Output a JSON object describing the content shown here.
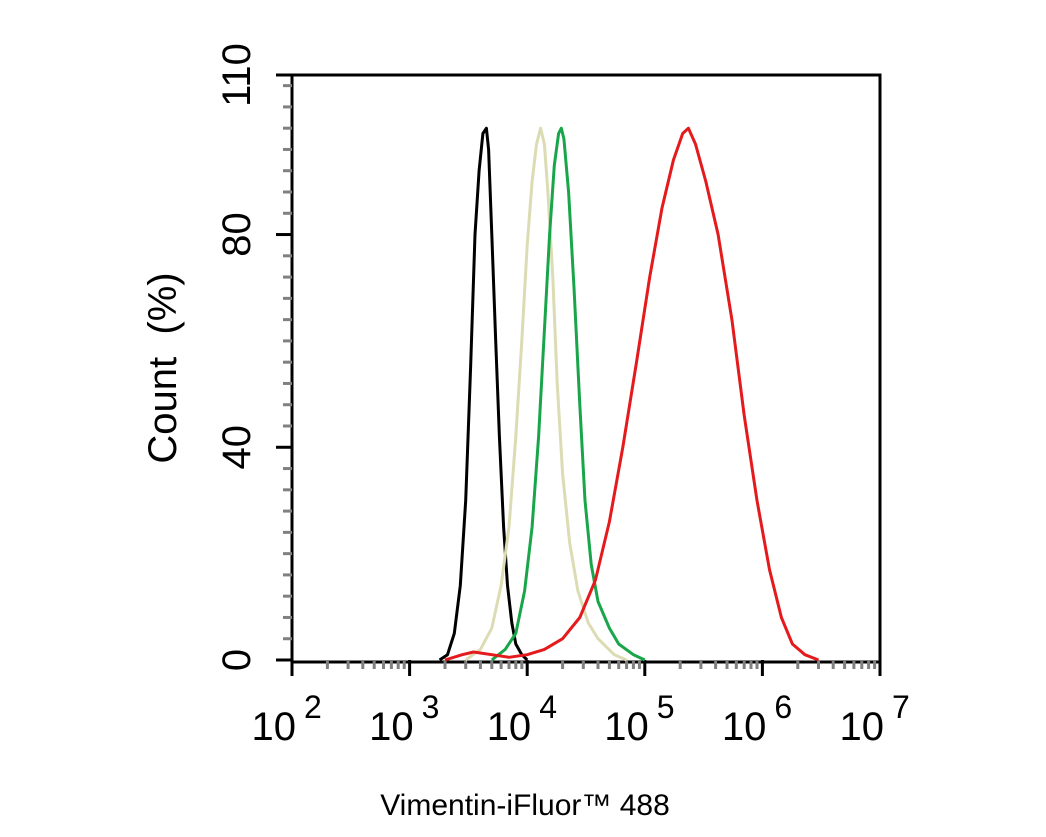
{
  "chart_data": {
    "type": "line",
    "title": "",
    "xlabel": "Vimentin-iFluor™ 488",
    "ylabel": "Count  (%)",
    "x_scale": "log",
    "xlim": [
      100,
      10000000
    ],
    "ylim": [
      0,
      110
    ],
    "y_ticks": [
      "0",
      "40",
      "80",
      "110"
    ],
    "x_ticks": [
      {
        "base": "10",
        "exp": "2"
      },
      {
        "base": "10",
        "exp": "3"
      },
      {
        "base": "10",
        "exp": "4"
      },
      {
        "base": "10",
        "exp": "5"
      },
      {
        "base": "10",
        "exp": "6"
      },
      {
        "base": "10",
        "exp": "7"
      }
    ],
    "grid": false,
    "series": [
      {
        "color": "#000000",
        "points": [
          [
            1800,
            0
          ],
          [
            2100,
            1
          ],
          [
            2400,
            5
          ],
          [
            2700,
            14
          ],
          [
            3000,
            30
          ],
          [
            3300,
            55
          ],
          [
            3600,
            80
          ],
          [
            3900,
            92
          ],
          [
            4200,
            99
          ],
          [
            4500,
            100
          ],
          [
            4700,
            96
          ],
          [
            5000,
            80
          ],
          [
            5400,
            60
          ],
          [
            5800,
            42
          ],
          [
            6300,
            25
          ],
          [
            6800,
            14
          ],
          [
            7400,
            7
          ],
          [
            8000,
            3
          ],
          [
            9000,
            1
          ],
          [
            10000,
            0
          ]
        ]
      },
      {
        "color": "#dcdcb4",
        "points": [
          [
            3000,
            0
          ],
          [
            4000,
            2
          ],
          [
            5000,
            6
          ],
          [
            6000,
            14
          ],
          [
            7000,
            25
          ],
          [
            8000,
            42
          ],
          [
            9000,
            60
          ],
          [
            10000,
            78
          ],
          [
            11000,
            90
          ],
          [
            12000,
            97
          ],
          [
            13000,
            100
          ],
          [
            14000,
            97
          ],
          [
            15000,
            88
          ],
          [
            16500,
            72
          ],
          [
            18000,
            52
          ],
          [
            20000,
            35
          ],
          [
            23000,
            22
          ],
          [
            27000,
            13
          ],
          [
            33000,
            7
          ],
          [
            40000,
            4
          ],
          [
            55000,
            1
          ],
          [
            70000,
            0
          ]
        ]
      },
      {
        "color": "#19a64a",
        "points": [
          [
            5000,
            0
          ],
          [
            6500,
            2
          ],
          [
            8000,
            5
          ],
          [
            9500,
            13
          ],
          [
            11000,
            25
          ],
          [
            12500,
            42
          ],
          [
            14000,
            62
          ],
          [
            15500,
            80
          ],
          [
            17000,
            93
          ],
          [
            18500,
            99
          ],
          [
            19500,
            100
          ],
          [
            20500,
            98
          ],
          [
            22500,
            88
          ],
          [
            25000,
            70
          ],
          [
            28000,
            48
          ],
          [
            31000,
            30
          ],
          [
            35000,
            18
          ],
          [
            40000,
            11
          ],
          [
            50000,
            6
          ],
          [
            60000,
            3
          ],
          [
            80000,
            1
          ],
          [
            100000,
            0
          ]
        ]
      },
      {
        "color": "#e41a1c",
        "points": [
          [
            2000,
            0
          ],
          [
            2800,
            1
          ],
          [
            3500,
            1.5
          ],
          [
            5000,
            1
          ],
          [
            7000,
            0.5
          ],
          [
            10000,
            1
          ],
          [
            14000,
            2
          ],
          [
            20000,
            4
          ],
          [
            28000,
            8
          ],
          [
            38000,
            15
          ],
          [
            50000,
            26
          ],
          [
            65000,
            40
          ],
          [
            85000,
            56
          ],
          [
            110000,
            72
          ],
          [
            140000,
            85
          ],
          [
            175000,
            94
          ],
          [
            210000,
            99
          ],
          [
            235000,
            100
          ],
          [
            270000,
            97
          ],
          [
            330000,
            90
          ],
          [
            420000,
            80
          ],
          [
            550000,
            64
          ],
          [
            700000,
            46
          ],
          [
            900000,
            30
          ],
          [
            1150000,
            17
          ],
          [
            1450000,
            8
          ],
          [
            1800000,
            3
          ],
          [
            2300000,
            1
          ],
          [
            3000000,
            0
          ]
        ]
      }
    ]
  }
}
